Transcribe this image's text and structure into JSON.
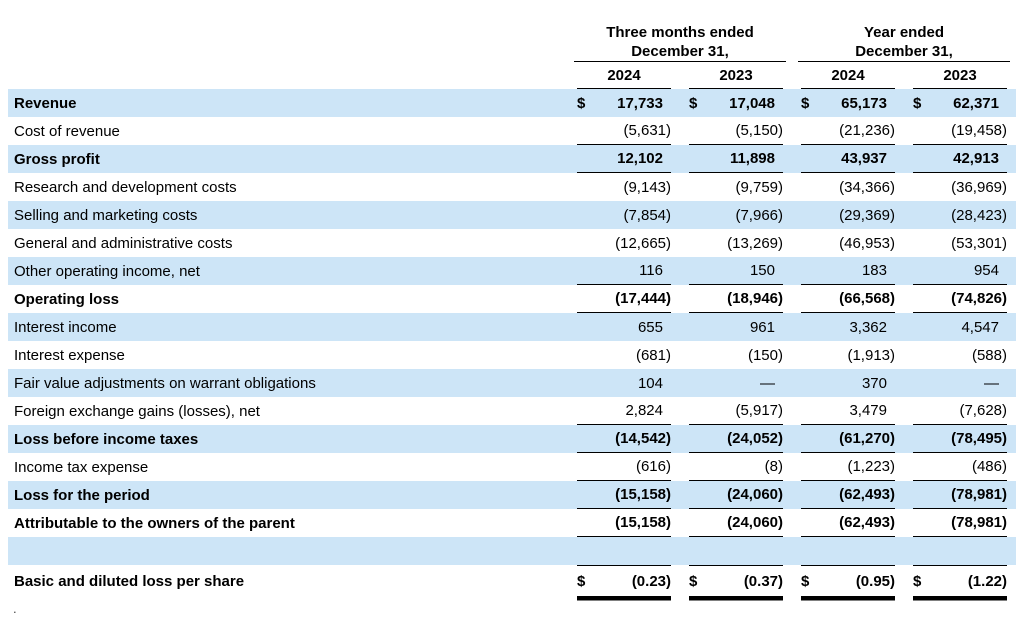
{
  "table": {
    "dollar_sign": "$",
    "col_groups": [
      {
        "label": "Three months ended\nDecember 31,"
      },
      {
        "label": "Year ended\nDecember 31,"
      }
    ],
    "year_headers": [
      "2024",
      "2023",
      "2024",
      "2023"
    ],
    "rows": [
      {
        "label": "Revenue",
        "values": [
          "17,733",
          "17,048",
          "65,173",
          "62,371"
        ],
        "bold": true,
        "shaded": true,
        "dollar": true
      },
      {
        "label": "Cost of revenue",
        "values": [
          "(5,631)",
          "(5,150)",
          "(21,236)",
          "(19,458)"
        ],
        "border_bottom": true
      },
      {
        "label": "Gross profit",
        "values": [
          "12,102",
          "11,898",
          "43,937",
          "42,913"
        ],
        "bold": true,
        "shaded": true,
        "border_bottom": true
      },
      {
        "label": "Research and development costs",
        "values": [
          "(9,143)",
          "(9,759)",
          "(34,366)",
          "(36,969)"
        ]
      },
      {
        "label": "Selling and marketing costs",
        "values": [
          "(7,854)",
          "(7,966)",
          "(29,369)",
          "(28,423)"
        ],
        "shaded": true
      },
      {
        "label": "General and administrative costs",
        "values": [
          "(12,665)",
          "(13,269)",
          "(46,953)",
          "(53,301)"
        ]
      },
      {
        "label": "Other operating income, net",
        "values": [
          "116",
          "150",
          "183",
          "954"
        ],
        "shaded": true,
        "border_bottom": true
      },
      {
        "label": "Operating loss",
        "values": [
          "(17,444)",
          "(18,946)",
          "(66,568)",
          "(74,826)"
        ],
        "bold": true,
        "border_bottom": true
      },
      {
        "label": "Interest income",
        "values": [
          "655",
          "961",
          "3,362",
          "4,547"
        ],
        "shaded": true
      },
      {
        "label": "Interest expense",
        "values": [
          "(681)",
          "(150)",
          "(1,913)",
          "(588)"
        ]
      },
      {
        "label": "Fair value adjustments on warrant obligations",
        "values": [
          "104",
          "—",
          "370",
          "—"
        ],
        "shaded": true
      },
      {
        "label": "Foreign exchange gains (losses), net",
        "values": [
          "2,824",
          "(5,917)",
          "3,479",
          "(7,628)"
        ],
        "border_bottom": true
      },
      {
        "label": "Loss before income taxes",
        "values": [
          "(14,542)",
          "(24,052)",
          "(61,270)",
          "(78,495)"
        ],
        "bold": true,
        "shaded": true,
        "border_bottom": true
      },
      {
        "label": "Income tax expense",
        "values": [
          "(616)",
          "(8)",
          "(1,223)",
          "(486)"
        ],
        "border_bottom": true
      },
      {
        "label": "Loss for the period",
        "values": [
          "(15,158)",
          "(24,060)",
          "(62,493)",
          "(78,981)"
        ],
        "bold": true,
        "shaded": true,
        "border_bottom": true
      },
      {
        "label": "Attributable to the owners of the parent",
        "values": [
          "(15,158)",
          "(24,060)",
          "(62,493)",
          "(78,981)"
        ],
        "bold": true,
        "border_bottom": true
      },
      {
        "label": "",
        "values": [
          "",
          "",
          "",
          ""
        ],
        "shaded": true,
        "spacer": true
      },
      {
        "label": "Basic and diluted loss per share",
        "values": [
          "(0.23)",
          "(0.37)",
          "(0.95)",
          "(1.22)"
        ],
        "bold": true,
        "dollar": true,
        "border_top": true,
        "double_bottom": true
      }
    ],
    "colors": {
      "row_shade": "#cde5f7",
      "text": "#000000",
      "rule": "#000000"
    },
    "footer_mark": "."
  }
}
